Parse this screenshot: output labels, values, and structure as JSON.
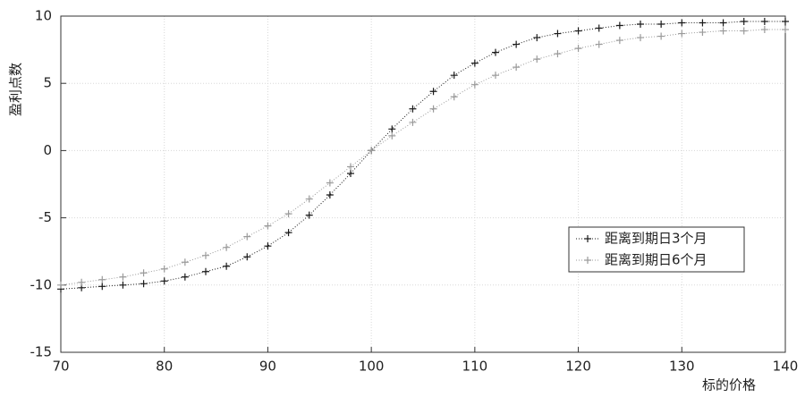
{
  "chart_data": {
    "type": "line",
    "x_label": "标的价格",
    "y_label": "盈利点数",
    "x": [
      70,
      72,
      74,
      76,
      78,
      80,
      82,
      84,
      86,
      88,
      90,
      92,
      94,
      96,
      98,
      100,
      102,
      104,
      106,
      108,
      110,
      112,
      114,
      116,
      118,
      120,
      122,
      124,
      126,
      128,
      130,
      132,
      134,
      136,
      138,
      140
    ],
    "series": [
      {
        "name": "距离到期日3个月",
        "color": "#1a1a1a",
        "values": [
          -10.3,
          -10.2,
          -10.1,
          -10.0,
          -9.9,
          -9.7,
          -9.4,
          -9.0,
          -8.6,
          -7.9,
          -7.1,
          -6.1,
          -4.8,
          -3.3,
          -1.7,
          0,
          1.6,
          3.1,
          4.4,
          5.6,
          6.5,
          7.3,
          7.9,
          8.4,
          8.7,
          8.9,
          9.1,
          9.3,
          9.4,
          9.4,
          9.5,
          9.5,
          9.5,
          9.6,
          9.6,
          9.6
        ]
      },
      {
        "name": "距离到期日6个月",
        "color": "#9a9a9a",
        "values": [
          -10.0,
          -9.8,
          -9.6,
          -9.4,
          -9.1,
          -8.8,
          -8.3,
          -7.8,
          -7.2,
          -6.4,
          -5.6,
          -4.7,
          -3.6,
          -2.4,
          -1.2,
          0,
          1.1,
          2.1,
          3.1,
          4.0,
          4.9,
          5.6,
          6.2,
          6.8,
          7.2,
          7.6,
          7.9,
          8.2,
          8.4,
          8.5,
          8.7,
          8.8,
          8.9,
          8.9,
          9.0,
          9.0
        ]
      }
    ],
    "xlim": [
      70,
      140
    ],
    "xticks": [
      70,
      80,
      90,
      100,
      110,
      120,
      130,
      140
    ],
    "ylim": [
      -15,
      10
    ],
    "yticks": [
      -15,
      -10,
      -5,
      0,
      5,
      10
    ],
    "grid": true,
    "legend": "lower right",
    "marker": "+"
  }
}
